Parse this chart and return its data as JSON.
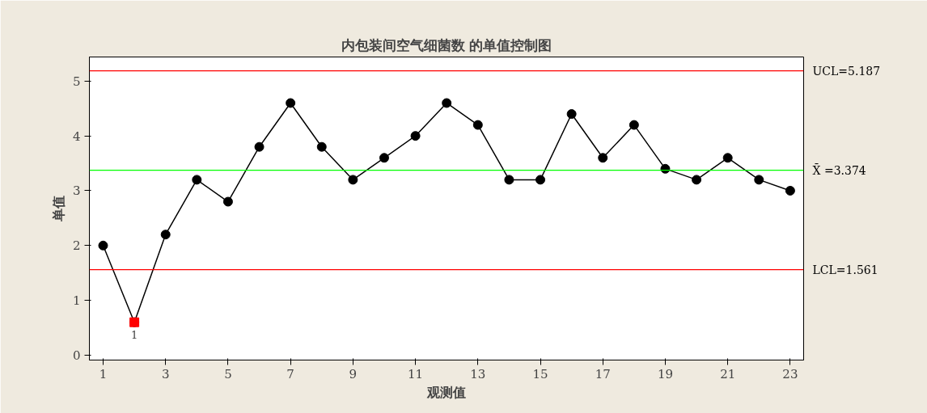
{
  "chart_data": {
    "type": "line",
    "title": "内包装间空气细菌数 的单值控制图",
    "xlabel": "观测值",
    "ylabel": "单值",
    "x": [
      1,
      2,
      3,
      4,
      5,
      6,
      7,
      8,
      9,
      10,
      11,
      12,
      13,
      14,
      15,
      16,
      17,
      18,
      19,
      20,
      21,
      22,
      23
    ],
    "series": [
      {
        "color": "#000000",
        "marker": "circle",
        "values": [
          2.0,
          0.6,
          2.2,
          3.2,
          2.8,
          3.8,
          4.6,
          3.8,
          3.2,
          3.6,
          4.0,
          4.6,
          4.2,
          3.2,
          3.2,
          4.4,
          3.6,
          4.2,
          3.4,
          3.2,
          3.6,
          3.2,
          3.0
        ]
      },
      {
        "type": "scatter",
        "color": "#ff0000",
        "marker": "square",
        "x": [
          2
        ],
        "values": [
          0.6
        ]
      }
    ],
    "xlim": [
      0.56,
      23.43
    ],
    "ylim": [
      -0.09,
      5.44
    ],
    "xticks": [
      1,
      3,
      5,
      7,
      9,
      11,
      13,
      15,
      17,
      19,
      21,
      23
    ],
    "yticks": [
      0,
      1,
      2,
      3,
      4,
      5
    ],
    "ref_lines": [
      {
        "axis": "y",
        "value": 5.187,
        "label": "UCL=5.187",
        "color": "#ff0000"
      },
      {
        "axis": "y",
        "value": 3.374,
        "label": "X̄ =3.374",
        "color": "#00ff00"
      },
      {
        "axis": "y",
        "value": 1.561,
        "label": "LCL=1.561",
        "color": "#ff0000"
      }
    ],
    "annotations": [
      {
        "text": "1",
        "x": 2,
        "y": 0.6
      }
    ],
    "grid": false
  }
}
